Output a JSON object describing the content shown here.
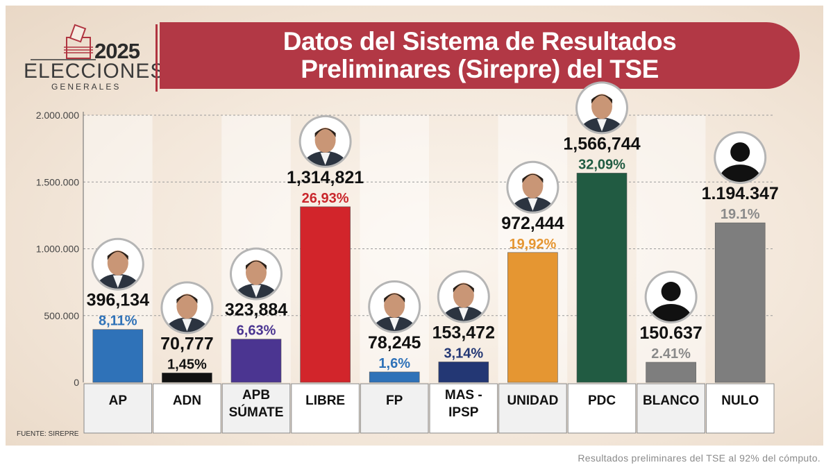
{
  "logo": {
    "year": "2025",
    "title": "ELECCIONES",
    "subtitle": "GENERALES"
  },
  "banner": {
    "line1": "Datos del Sistema de Resultados",
    "line2": "Preliminares (Sirepre) del TSE"
  },
  "source": "FUENTE: SIREPRE",
  "caption": "Resultados preliminares del TSE al 92% del cómputo.",
  "chart_data": {
    "type": "bar",
    "title": "Datos del Sistema de Resultados Preliminares (Sirepre) del TSE",
    "ylim": [
      0,
      2000000
    ],
    "yticks": [
      0,
      500000,
      1000000,
      1500000,
      2000000
    ],
    "ytick_labels": [
      "0",
      "500.000",
      "1.000.000",
      "1.500.000",
      "2.000.000"
    ],
    "grid": true,
    "categories": [
      {
        "label": [
          "AP"
        ],
        "value": 396134,
        "value_label": "396,134",
        "percent_label": "8,11%",
        "color": "#2f72b8",
        "pct_color": "#2f72b8",
        "photo": "candidate-photo"
      },
      {
        "label": [
          "ADN"
        ],
        "value": 70777,
        "value_label": "70,777",
        "percent_label": "1,45%",
        "color": "#111111",
        "pct_color": "#111111",
        "photo": "candidate-photo"
      },
      {
        "label": [
          "APB",
          "SÚMATE"
        ],
        "value": 323884,
        "value_label": "323,884",
        "percent_label": "6,63%",
        "color": "#4b3591",
        "pct_color": "#4b3591",
        "photo": "candidate-photo"
      },
      {
        "label": [
          "LIBRE"
        ],
        "value": 1314821,
        "value_label": "1,314,821",
        "percent_label": "26,93%",
        "color": "#d2252b",
        "pct_color": "#c9262b",
        "photo": "candidate-photo"
      },
      {
        "label": [
          "FP"
        ],
        "value": 78245,
        "value_label": "78,245",
        "percent_label": "1,6%",
        "color": "#2f72b8",
        "pct_color": "#2f72b8",
        "photo": "candidate-photo"
      },
      {
        "label": [
          "MAS -",
          "IPSP"
        ],
        "value": 153472,
        "value_label": "153,472",
        "percent_label": "3,14%",
        "color": "#233774",
        "pct_color": "#233774",
        "photo": "candidate-photo"
      },
      {
        "label": [
          "UNIDAD"
        ],
        "value": 972444,
        "value_label": "972,444",
        "percent_label": "19,92%",
        "color": "#e59632",
        "pct_color": "#e59632",
        "photo": "candidate-photo"
      },
      {
        "label": [
          "PDC"
        ],
        "value": 1566744,
        "value_label": "1,566,744",
        "percent_label": "32,09%",
        "color": "#215b42",
        "pct_color": "#215b42",
        "photo": "candidate-photo"
      },
      {
        "label": [
          "BLANCO"
        ],
        "value": 150637,
        "value_label": "150.637",
        "percent_label": "2.41%",
        "color": "#7e7e7e",
        "pct_color": "#8a8a8a",
        "photo": "silhouette"
      },
      {
        "label": [
          "NULO"
        ],
        "value": 1194347,
        "value_label": "1.194.347",
        "percent_label": "19.1%",
        "color": "#7e7e7e",
        "pct_color": "#8a8a8a",
        "photo": "silhouette"
      }
    ]
  }
}
